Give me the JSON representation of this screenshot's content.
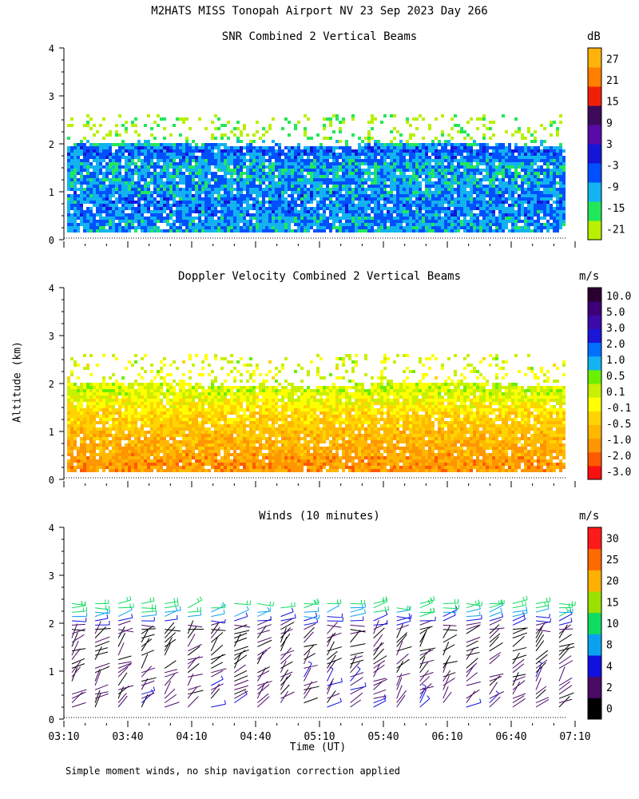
{
  "page_title": "M2HATS MISS Tonopah Airport NV  23 Sep 2023 Day 266",
  "footnote": "Simple moment winds, no ship navigation correction applied",
  "colors": {
    "snr": [
      "#b8f000",
      "#21e85a",
      "#12b3f0",
      "#0050ff",
      "#1515d8",
      "#5a0aa8",
      "#3d0a5c",
      "#f02008",
      "#ff7f00",
      "#ffb30a"
    ],
    "velocity": [
      "#ff1010",
      "#ff5a00",
      "#ff9500",
      "#ffb700",
      "#ffd400",
      "#ffff00",
      "#c8f000",
      "#6af000",
      "#12b3f0",
      "#0070ff",
      "#1a16d8",
      "#3b0aa8",
      "#3d0078",
      "#2a0030"
    ],
    "winds": [
      "#000000",
      "#4a0a66",
      "#1010e0",
      "#0aa2f0",
      "#10dc60",
      "#9ae000",
      "#ffb000",
      "#ff6a00",
      "#ff1a1a"
    ]
  },
  "chart_data": [
    {
      "type": "heatmap",
      "title": "SNR Combined 2 Vertical Beams",
      "ylabel": "Altitude (km)",
      "ylim": [
        0,
        4
      ],
      "yticks": [
        "0",
        "1",
        "2",
        "3",
        "4"
      ],
      "xlim": [
        "03:10",
        "07:10"
      ],
      "colorbar_unit": "dB",
      "colorbar_labels": [
        "-21",
        "-15",
        "-9",
        "-3",
        "3",
        "9",
        "15",
        "21",
        "27"
      ],
      "layer_top_km": 1.95,
      "profile": [
        {
          "alt_km": 0.2,
          "level": 2.2
        },
        {
          "alt_km": 0.6,
          "level": 2.6
        },
        {
          "alt_km": 1.0,
          "level": 2.4
        },
        {
          "alt_km": 1.5,
          "level": 2.0
        },
        {
          "alt_km": 1.85,
          "level": 3.1
        },
        {
          "alt_km": 2.1,
          "level": 0.3
        },
        {
          "alt_km": 2.4,
          "level": 0.0
        }
      ]
    },
    {
      "type": "heatmap",
      "title": "Doppler Velocity Combined 2 Vertical Beams",
      "ylabel": "Altitude (km)",
      "ylim": [
        0,
        4
      ],
      "yticks": [
        "0",
        "1",
        "2",
        "3",
        "4"
      ],
      "xlim": [
        "03:10",
        "07:10"
      ],
      "colorbar_unit": "m/s",
      "colorbar_labels": [
        "-3.0",
        "-2.0",
        "-1.0",
        "-0.5",
        "-0.1",
        "0.1",
        "0.5",
        "1.0",
        "2.0",
        "3.0",
        "5.0",
        "10.0"
      ],
      "layer_top_km": 1.95,
      "profile": [
        {
          "alt_km": 0.3,
          "level": 2.2
        },
        {
          "alt_km": 0.8,
          "level": 3.0
        },
        {
          "alt_km": 1.3,
          "level": 4.0
        },
        {
          "alt_km": 1.8,
          "level": 5.8
        },
        {
          "alt_km": 2.1,
          "level": 5.5
        }
      ]
    },
    {
      "type": "barbs",
      "title": "Winds (10 minutes)",
      "ylabel": "Altitude (km)",
      "xlabel": "Time (UT)",
      "ylim": [
        0,
        4
      ],
      "yticks": [
        "0",
        "1",
        "2",
        "3",
        "4"
      ],
      "xlim": [
        "03:10",
        "07:10"
      ],
      "xticks": [
        "03:10",
        "03:40",
        "04:10",
        "04:40",
        "05:10",
        "05:40",
        "06:10",
        "06:40",
        "07:10"
      ],
      "colorbar_unit": "m/s",
      "colorbar_labels": [
        "0",
        "2",
        "4",
        "8",
        "10",
        "15",
        "20",
        "25",
        "30"
      ],
      "profiles": 22,
      "profile_interval_min": 10,
      "speed_profile": [
        {
          "alt_km": 0.2,
          "speed": 3
        },
        {
          "alt_km": 0.8,
          "speed": 3
        },
        {
          "alt_km": 1.4,
          "speed": 1
        },
        {
          "alt_km": 1.9,
          "speed": 2
        },
        {
          "alt_km": 2.1,
          "speed": 8
        },
        {
          "alt_km": 2.5,
          "speed": 14
        }
      ]
    }
  ],
  "y_axis_title": "Altitude (km)",
  "x_axis_title": "Time (UT)"
}
